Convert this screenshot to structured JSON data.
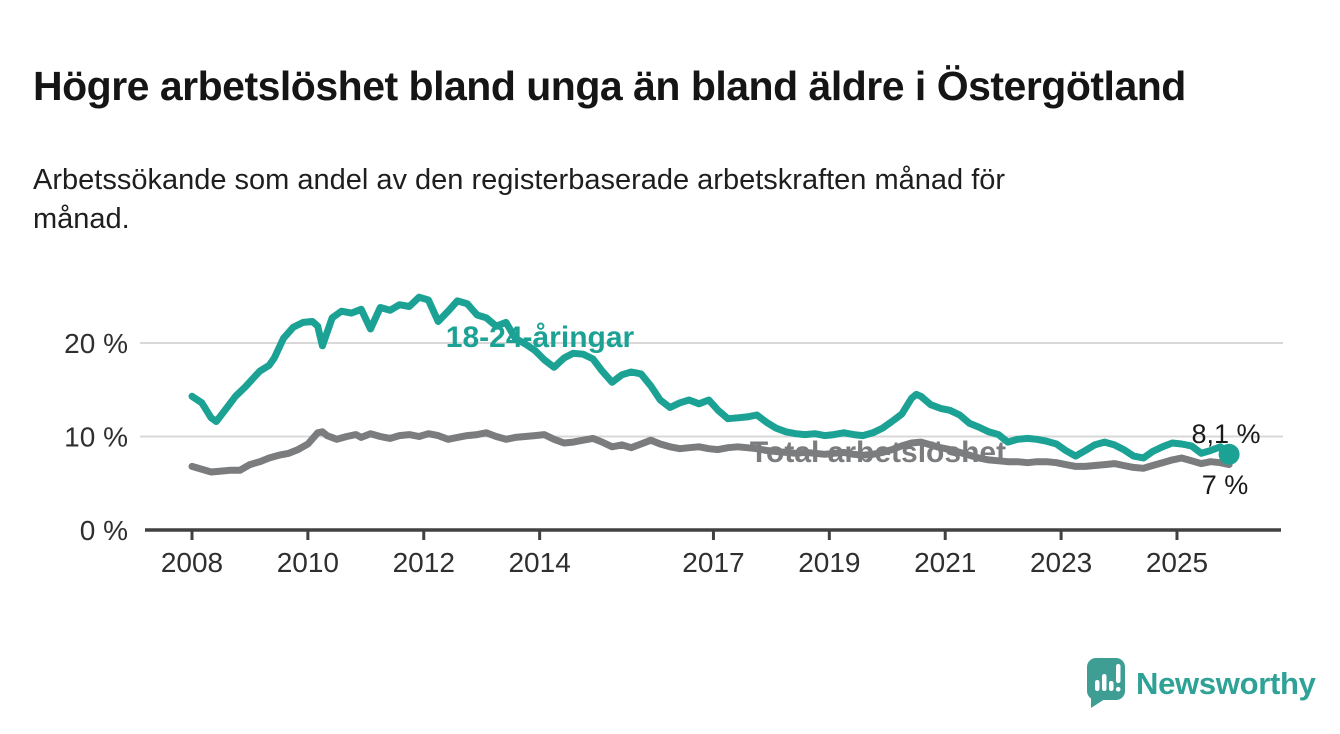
{
  "header": {
    "title": "Högre arbetslöshet bland unga än bland äldre i Östergötland",
    "subtitle": "Arbetssökande som andel av den registerbaserade arbetskraften månad för månad."
  },
  "colors": {
    "young_series": "#1ba294",
    "total_series": "#7b7c7e",
    "grid": "#d8d8d8",
    "axis": "#414141",
    "text": "#1a1a1a",
    "brand_teal": "#3f9e94"
  },
  "footer": {
    "brand": "Newsworthy",
    "logo_icon": "speech-bubble-bar-chart-icon"
  },
  "chart_data": {
    "type": "line",
    "title": "Högre arbetslöshet bland unga än bland äldre i Östergötland",
    "subtitle": "Arbetssökande som andel av den registerbaserade arbetskraften månad för månad.",
    "xlabel": "",
    "ylabel": "",
    "grid": "horizontal",
    "legend_position": "inline-labels",
    "xlim": [
      2008,
      2026.8
    ],
    "ylim": [
      0,
      26.5
    ],
    "y_ticks": [
      {
        "value": 0,
        "label": "0 %"
      },
      {
        "value": 10,
        "label": "10 %"
      },
      {
        "value": 20,
        "label": "20 %"
      }
    ],
    "x_ticks": [
      {
        "value": 2008,
        "label": "2008"
      },
      {
        "value": 2010,
        "label": "2010"
      },
      {
        "value": 2012,
        "label": "2012"
      },
      {
        "value": 2014,
        "label": "2014"
      },
      {
        "value": 2017,
        "label": "2017"
      },
      {
        "value": 2019,
        "label": "2019"
      },
      {
        "value": 2021,
        "label": "2021"
      },
      {
        "value": 2023,
        "label": "2023"
      },
      {
        "value": 2025,
        "label": "2025"
      }
    ],
    "series": [
      {
        "name": "18-24-åringar",
        "color": "#1ba294",
        "end_label": "8,1 %",
        "end_dot": true,
        "points": [
          [
            2008.0,
            14.3
          ],
          [
            2008.17,
            13.6
          ],
          [
            2008.33,
            12.0
          ],
          [
            2008.42,
            11.6
          ],
          [
            2008.58,
            12.9
          ],
          [
            2008.75,
            14.3
          ],
          [
            2008.92,
            15.3
          ],
          [
            2009.08,
            16.4
          ],
          [
            2009.17,
            17.0
          ],
          [
            2009.33,
            17.6
          ],
          [
            2009.42,
            18.4
          ],
          [
            2009.58,
            20.5
          ],
          [
            2009.75,
            21.7
          ],
          [
            2009.92,
            22.2
          ],
          [
            2010.08,
            22.3
          ],
          [
            2010.17,
            21.8
          ],
          [
            2010.25,
            19.7
          ],
          [
            2010.42,
            22.7
          ],
          [
            2010.58,
            23.4
          ],
          [
            2010.75,
            23.2
          ],
          [
            2010.92,
            23.6
          ],
          [
            2011.08,
            21.5
          ],
          [
            2011.25,
            23.8
          ],
          [
            2011.42,
            23.5
          ],
          [
            2011.58,
            24.1
          ],
          [
            2011.75,
            23.9
          ],
          [
            2011.92,
            24.9
          ],
          [
            2012.08,
            24.6
          ],
          [
            2012.25,
            22.3
          ],
          [
            2012.42,
            23.4
          ],
          [
            2012.58,
            24.5
          ],
          [
            2012.75,
            24.2
          ],
          [
            2012.92,
            23.0
          ],
          [
            2013.08,
            22.7
          ],
          [
            2013.25,
            21.8
          ],
          [
            2013.42,
            22.2
          ],
          [
            2013.58,
            20.5
          ],
          [
            2013.75,
            19.9
          ],
          [
            2013.92,
            19.2
          ],
          [
            2014.08,
            18.2
          ],
          [
            2014.25,
            17.4
          ],
          [
            2014.42,
            18.4
          ],
          [
            2014.58,
            18.9
          ],
          [
            2014.75,
            18.8
          ],
          [
            2014.92,
            18.3
          ],
          [
            2015.08,
            17.0
          ],
          [
            2015.25,
            15.8
          ],
          [
            2015.42,
            16.6
          ],
          [
            2015.58,
            16.9
          ],
          [
            2015.75,
            16.7
          ],
          [
            2015.92,
            15.4
          ],
          [
            2016.08,
            13.9
          ],
          [
            2016.25,
            13.1
          ],
          [
            2016.42,
            13.6
          ],
          [
            2016.58,
            13.9
          ],
          [
            2016.75,
            13.5
          ],
          [
            2016.92,
            13.9
          ],
          [
            2017.08,
            12.8
          ],
          [
            2017.25,
            11.9
          ],
          [
            2017.42,
            12.0
          ],
          [
            2017.58,
            12.1
          ],
          [
            2017.75,
            12.3
          ],
          [
            2017.92,
            11.5
          ],
          [
            2018.08,
            10.9
          ],
          [
            2018.25,
            10.5
          ],
          [
            2018.42,
            10.3
          ],
          [
            2018.58,
            10.2
          ],
          [
            2018.75,
            10.3
          ],
          [
            2018.92,
            10.1
          ],
          [
            2019.08,
            10.2
          ],
          [
            2019.25,
            10.4
          ],
          [
            2019.42,
            10.2
          ],
          [
            2019.58,
            10.1
          ],
          [
            2019.75,
            10.4
          ],
          [
            2019.92,
            10.9
          ],
          [
            2020.08,
            11.6
          ],
          [
            2020.25,
            12.4
          ],
          [
            2020.42,
            14.1
          ],
          [
            2020.5,
            14.5
          ],
          [
            2020.58,
            14.3
          ],
          [
            2020.75,
            13.4
          ],
          [
            2020.92,
            13.0
          ],
          [
            2021.08,
            12.8
          ],
          [
            2021.25,
            12.3
          ],
          [
            2021.42,
            11.4
          ],
          [
            2021.58,
            11.0
          ],
          [
            2021.75,
            10.5
          ],
          [
            2021.92,
            10.2
          ],
          [
            2022.08,
            9.4
          ],
          [
            2022.25,
            9.7
          ],
          [
            2022.42,
            9.8
          ],
          [
            2022.58,
            9.7
          ],
          [
            2022.75,
            9.5
          ],
          [
            2022.92,
            9.2
          ],
          [
            2023.08,
            8.5
          ],
          [
            2023.25,
            7.9
          ],
          [
            2023.42,
            8.5
          ],
          [
            2023.58,
            9.1
          ],
          [
            2023.75,
            9.4
          ],
          [
            2023.92,
            9.1
          ],
          [
            2024.08,
            8.6
          ],
          [
            2024.25,
            7.9
          ],
          [
            2024.42,
            7.7
          ],
          [
            2024.58,
            8.4
          ],
          [
            2024.75,
            8.9
          ],
          [
            2024.92,
            9.3
          ],
          [
            2025.08,
            9.2
          ],
          [
            2025.25,
            9.0
          ],
          [
            2025.42,
            8.2
          ],
          [
            2025.58,
            8.5
          ],
          [
            2025.75,
            8.9
          ],
          [
            2025.9,
            8.1
          ]
        ]
      },
      {
        "name": "Total arbetslöshet",
        "color": "#7b7c7e",
        "end_label": "7 %",
        "end_dot": false,
        "points": [
          [
            2008.0,
            6.8
          ],
          [
            2008.17,
            6.5
          ],
          [
            2008.33,
            6.2
          ],
          [
            2008.5,
            6.3
          ],
          [
            2008.67,
            6.4
          ],
          [
            2008.83,
            6.4
          ],
          [
            2009.0,
            7.0
          ],
          [
            2009.17,
            7.3
          ],
          [
            2009.33,
            7.7
          ],
          [
            2009.5,
            8.0
          ],
          [
            2009.67,
            8.2
          ],
          [
            2009.83,
            8.6
          ],
          [
            2010.0,
            9.2
          ],
          [
            2010.17,
            10.4
          ],
          [
            2010.25,
            10.5
          ],
          [
            2010.33,
            10.1
          ],
          [
            2010.5,
            9.7
          ],
          [
            2010.67,
            10.0
          ],
          [
            2010.83,
            10.2
          ],
          [
            2010.92,
            9.9
          ],
          [
            2011.08,
            10.3
          ],
          [
            2011.25,
            10.0
          ],
          [
            2011.42,
            9.8
          ],
          [
            2011.58,
            10.1
          ],
          [
            2011.75,
            10.2
          ],
          [
            2011.92,
            10.0
          ],
          [
            2012.08,
            10.3
          ],
          [
            2012.25,
            10.1
          ],
          [
            2012.42,
            9.7
          ],
          [
            2012.58,
            9.9
          ],
          [
            2012.75,
            10.1
          ],
          [
            2012.92,
            10.2
          ],
          [
            2013.08,
            10.4
          ],
          [
            2013.25,
            10.0
          ],
          [
            2013.42,
            9.7
          ],
          [
            2013.58,
            9.9
          ],
          [
            2013.75,
            10.0
          ],
          [
            2013.92,
            10.1
          ],
          [
            2014.08,
            10.2
          ],
          [
            2014.25,
            9.7
          ],
          [
            2014.42,
            9.3
          ],
          [
            2014.58,
            9.4
          ],
          [
            2014.75,
            9.6
          ],
          [
            2014.92,
            9.8
          ],
          [
            2015.08,
            9.4
          ],
          [
            2015.25,
            8.9
          ],
          [
            2015.42,
            9.1
          ],
          [
            2015.58,
            8.8
          ],
          [
            2015.75,
            9.2
          ],
          [
            2015.92,
            9.6
          ],
          [
            2016.08,
            9.2
          ],
          [
            2016.25,
            8.9
          ],
          [
            2016.42,
            8.7
          ],
          [
            2016.58,
            8.8
          ],
          [
            2016.75,
            8.9
          ],
          [
            2016.92,
            8.7
          ],
          [
            2017.08,
            8.6
          ],
          [
            2017.25,
            8.8
          ],
          [
            2017.42,
            8.9
          ],
          [
            2017.58,
            8.8
          ],
          [
            2017.75,
            8.7
          ],
          [
            2017.92,
            8.5
          ],
          [
            2018.08,
            8.4
          ],
          [
            2018.25,
            8.3
          ],
          [
            2018.42,
            8.2
          ],
          [
            2018.58,
            8.3
          ],
          [
            2018.75,
            8.2
          ],
          [
            2018.92,
            8.1
          ],
          [
            2019.08,
            8.2
          ],
          [
            2019.25,
            8.3
          ],
          [
            2019.42,
            8.1
          ],
          [
            2019.58,
            8.0
          ],
          [
            2019.75,
            8.1
          ],
          [
            2019.92,
            8.3
          ],
          [
            2020.08,
            8.6
          ],
          [
            2020.25,
            9.0
          ],
          [
            2020.42,
            9.3
          ],
          [
            2020.58,
            9.4
          ],
          [
            2020.75,
            9.1
          ],
          [
            2020.92,
            8.8
          ],
          [
            2021.08,
            8.6
          ],
          [
            2021.25,
            8.3
          ],
          [
            2021.42,
            8.0
          ],
          [
            2021.58,
            7.7
          ],
          [
            2021.75,
            7.5
          ],
          [
            2021.92,
            7.4
          ],
          [
            2022.08,
            7.3
          ],
          [
            2022.25,
            7.3
          ],
          [
            2022.42,
            7.2
          ],
          [
            2022.58,
            7.3
          ],
          [
            2022.75,
            7.3
          ],
          [
            2022.92,
            7.2
          ],
          [
            2023.08,
            7.0
          ],
          [
            2023.25,
            6.8
          ],
          [
            2023.42,
            6.8
          ],
          [
            2023.58,
            6.9
          ],
          [
            2023.75,
            7.0
          ],
          [
            2023.92,
            7.1
          ],
          [
            2024.08,
            6.9
          ],
          [
            2024.25,
            6.7
          ],
          [
            2024.42,
            6.6
          ],
          [
            2024.58,
            6.9
          ],
          [
            2024.75,
            7.2
          ],
          [
            2024.92,
            7.5
          ],
          [
            2025.08,
            7.7
          ],
          [
            2025.25,
            7.4
          ],
          [
            2025.42,
            7.1
          ],
          [
            2025.58,
            7.3
          ],
          [
            2025.75,
            7.2
          ],
          [
            2025.9,
            7.0
          ]
        ]
      }
    ]
  }
}
